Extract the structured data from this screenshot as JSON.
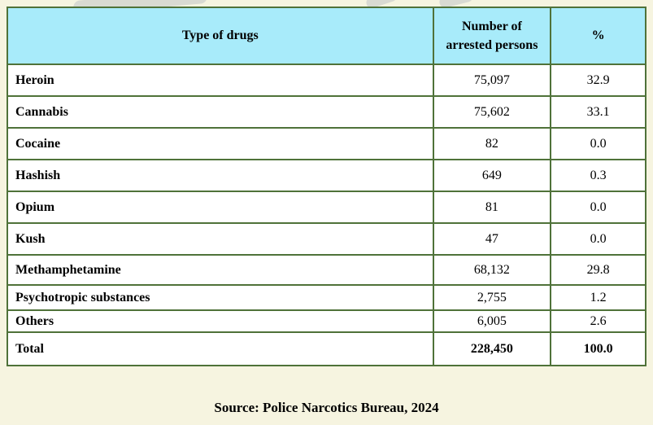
{
  "colors": {
    "page_bg": "#f6f4e0",
    "header_bg": "#a8ebfa",
    "border": "#4f7239",
    "text": "#000000",
    "watermark": "#d9dad2"
  },
  "table": {
    "header": {
      "col_drug": "Type of drugs",
      "col_count": "Number of arrested persons",
      "col_pct": "%"
    },
    "rows": [
      {
        "label": "Heroin",
        "count": "75,097",
        "pct": "32.9"
      },
      {
        "label": "Cannabis",
        "count": "75,602",
        "pct": "33.1"
      },
      {
        "label": "Cocaine",
        "count": "82",
        "pct": "0.0"
      },
      {
        "label": "Hashish",
        "count": "649",
        "pct": "0.3"
      },
      {
        "label": "Opium",
        "count": "81",
        "pct": "0.0"
      },
      {
        "label": "Kush",
        "count": "47",
        "pct": "0.0"
      },
      {
        "label": "Methamphetamine",
        "count": "68,132",
        "pct": "29.8"
      },
      {
        "label": "Psychotropic substances",
        "count": "2,755",
        "pct": "1.2"
      },
      {
        "label": "Others",
        "count": "6,005",
        "pct": "2.6"
      },
      {
        "label": "Total",
        "count": "228,450",
        "pct": "100.0"
      }
    ],
    "source": "Source: Police Narcotics Bureau, 2024"
  }
}
